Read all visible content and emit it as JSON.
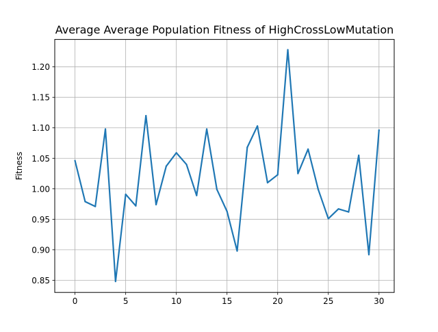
{
  "chart_data": {
    "type": "line",
    "title": "Average Average Population Fitness of HighCrossLowMutation",
    "xlabel": "",
    "ylabel": "Fitness",
    "xlim": [
      -2,
      31.5
    ],
    "ylim": [
      0.83,
      1.245
    ],
    "xticks": [
      0,
      5,
      10,
      15,
      20,
      25,
      30
    ],
    "xtick_labels": [
      "0",
      "5",
      "10",
      "15",
      "20",
      "25",
      "30"
    ],
    "yticks": [
      0.85,
      0.9,
      0.95,
      1.0,
      1.05,
      1.1,
      1.15,
      1.2
    ],
    "ytick_labels": [
      "0.85",
      "0.90",
      "0.95",
      "1.00",
      "1.05",
      "1.10",
      "1.15",
      "1.20"
    ],
    "grid": true,
    "series": [
      {
        "color": "#1f77b4",
        "x": [
          0,
          1,
          2,
          3,
          4,
          5,
          6,
          7,
          8,
          9,
          10,
          11,
          12,
          13,
          14,
          15,
          16,
          17,
          18,
          19,
          20,
          21,
          22,
          23,
          24,
          25,
          26,
          27,
          28,
          29,
          30
        ],
        "y": [
          1.046,
          0.979,
          0.971,
          1.098,
          0.848,
          0.991,
          0.972,
          1.12,
          0.974,
          1.037,
          1.059,
          1.04,
          0.989,
          1.098,
          0.999,
          0.963,
          0.898,
          1.068,
          1.103,
          1.01,
          1.023,
          1.228,
          1.025,
          1.065,
          0.999,
          0.951,
          0.967,
          0.962,
          1.055,
          0.892,
          1.096
        ]
      }
    ]
  }
}
